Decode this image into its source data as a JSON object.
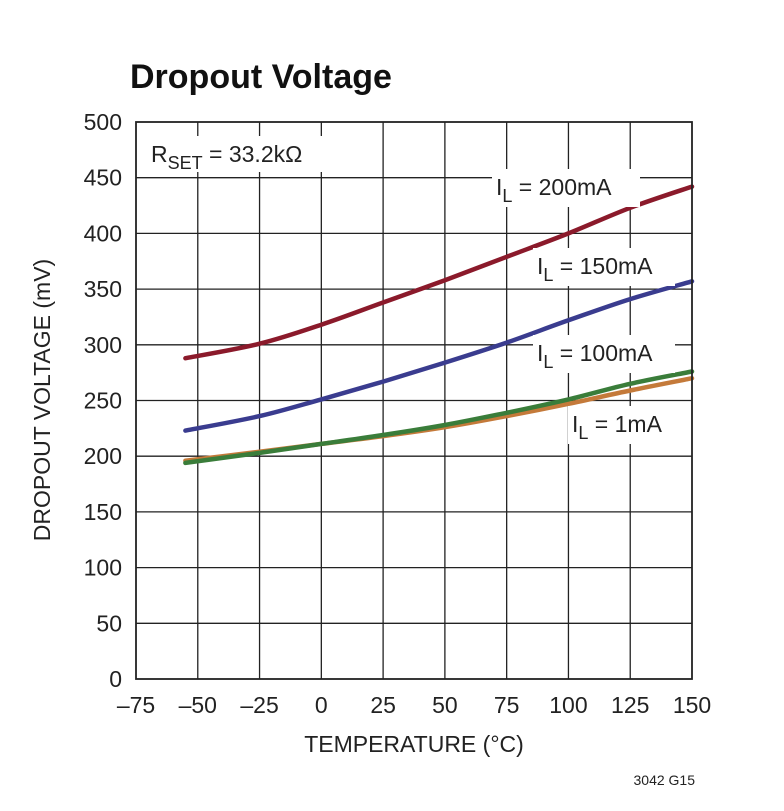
{
  "chart_data": {
    "type": "line",
    "title": "Dropout Voltage",
    "xlabel": "TEMPERATURE (°C)",
    "ylabel": "DROPOUT VOLTAGE (mV)",
    "xlim": [
      -75,
      150
    ],
    "ylim": [
      0,
      500
    ],
    "xticks": [
      -75,
      -50,
      -25,
      0,
      25,
      50,
      75,
      100,
      125,
      150
    ],
    "yticks": [
      0,
      50,
      100,
      150,
      200,
      250,
      300,
      350,
      400,
      450,
      500
    ],
    "grid": true,
    "annotation": {
      "symbol": "R",
      "subscript": "SET",
      "text": " = 33.2kΩ"
    },
    "figure_id": "3042 G15",
    "series": [
      {
        "name": "200mA",
        "label_symbol": "I",
        "label_subscript": "L",
        "label_text": " = 200mA",
        "color": "#8b1a2b",
        "x": [
          -55,
          -25,
          0,
          25,
          50,
          75,
          100,
          125,
          150
        ],
        "y": [
          288,
          301,
          318,
          338,
          358,
          379,
          400,
          423,
          442
        ]
      },
      {
        "name": "150mA",
        "label_symbol": "I",
        "label_subscript": "L",
        "label_text": " = 150mA",
        "color": "#3a3c8f",
        "x": [
          -55,
          -25,
          0,
          25,
          50,
          75,
          100,
          125,
          150
        ],
        "y": [
          223,
          236,
          251,
          267,
          284,
          302,
          322,
          341,
          357
        ]
      },
      {
        "name": "100mA",
        "label_symbol": "I",
        "label_subscript": "L",
        "label_text": " = 100mA",
        "color": "#3a7d3a",
        "x": [
          -55,
          -25,
          0,
          25,
          50,
          75,
          100,
          125,
          150
        ],
        "y": [
          194,
          203,
          211,
          219,
          228,
          239,
          251,
          265,
          276
        ]
      },
      {
        "name": "1mA",
        "label_symbol": "I",
        "label_subscript": "L",
        "label_text": " = 1mA",
        "color": "#c47a3a",
        "x": [
          -55,
          -25,
          0,
          25,
          50,
          75,
          100,
          125,
          150
        ],
        "y": [
          196,
          204,
          211,
          218,
          226,
          236,
          247,
          259,
          270
        ]
      }
    ]
  }
}
